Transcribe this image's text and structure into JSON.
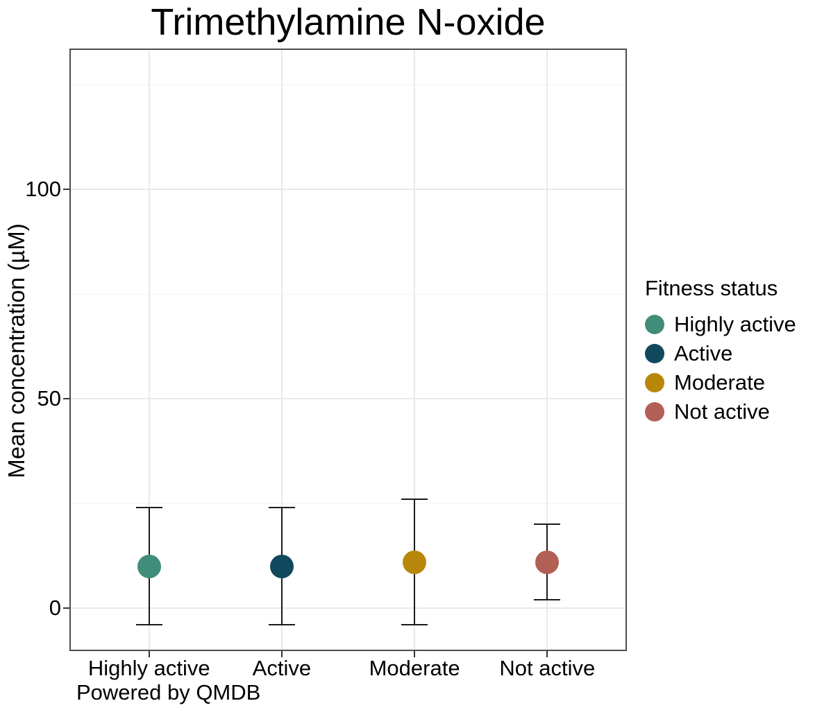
{
  "title": "Trimethylamine N-oxide",
  "caption": "Powered by QMDB",
  "axes": {
    "y_label": "Mean concentration (µM)",
    "y_tick_labels": [
      "0",
      "50",
      "100"
    ],
    "x_category_labels": [
      "Highly active",
      "Active",
      "Moderate",
      "Not active"
    ]
  },
  "legend": {
    "title": "Fitness status"
  },
  "style": {
    "panel_border_color": "#4d4d4d",
    "grid_major_color": "#e9e9e9",
    "grid_minor_color": "#f4f4f4",
    "errorbar_color": "#1a1a1a",
    "tick_color": "#333333",
    "text_color": "#000000",
    "background_color": "#ffffff"
  },
  "chart_data": {
    "type": "scatter",
    "subtype": "point-with-errorbars",
    "title": "Trimethylamine N-oxide",
    "xlabel": "",
    "ylabel": "Mean concentration (µM)",
    "caption": "Powered by QMDB",
    "categories": [
      "Highly active",
      "Active",
      "Moderate",
      "Not active"
    ],
    "series": [
      {
        "name": "Highly active",
        "mean": 10,
        "ci_low": -4,
        "ci_high": 24,
        "color": "#408d79"
      },
      {
        "name": "Active",
        "mean": 10,
        "ci_low": -4,
        "ci_high": 24,
        "color": "#10485e"
      },
      {
        "name": "Moderate",
        "mean": 11,
        "ci_low": -4,
        "ci_high": 26,
        "color": "#b8860b"
      },
      {
        "name": "Not active",
        "mean": 11,
        "ci_low": 2,
        "ci_high": 20,
        "color": "#b25f55"
      }
    ],
    "y_ticks": [
      0,
      50,
      100
    ],
    "y_minor_gridlines": [
      25,
      75,
      125
    ],
    "ylim": [
      -10.3,
      133.6
    ],
    "grid": true,
    "legend_title": "Fitness status",
    "legend_position": "right"
  }
}
